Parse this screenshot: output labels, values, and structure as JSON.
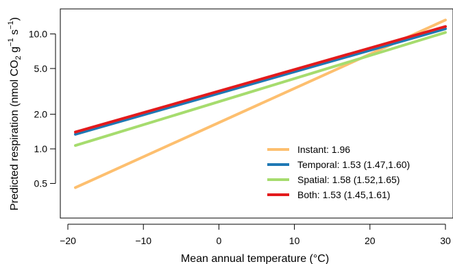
{
  "chart_data": {
    "type": "line",
    "xlabel": "Mean annual temperature (°C)",
    "ylabel_parts": {
      "a": "Predicted respiration (nmol CO",
      "b": "2",
      "c": " g",
      "d": "−1",
      "e": " s",
      "f": "−1",
      "g": ")"
    },
    "xlim": [
      -21,
      31
    ],
    "ylim": [
      0.25,
      16.5
    ],
    "y_scale": "log",
    "x_ticks": [
      -20,
      -10,
      0,
      10,
      20,
      30
    ],
    "x_tick_labels": [
      "−20",
      "−10",
      "0",
      "10",
      "20",
      "30"
    ],
    "y_ticks": [
      0.5,
      1.0,
      2.0,
      5.0,
      10.0
    ],
    "y_tick_labels": [
      "0.5",
      "1.0",
      "2.0",
      "5.0",
      "10.0"
    ],
    "legend_position": "bottom-right",
    "series": [
      {
        "name": "Instant: 1.96",
        "color": "#fdbf6f",
        "x": [
          -19,
          30
        ],
        "y": [
          0.46,
          13.2
        ]
      },
      {
        "name": "Temporal: 1.53 (1.47,1.60)",
        "color": "#1f78b4",
        "x": [
          -19,
          30
        ],
        "y": [
          1.34,
          11.1
        ]
      },
      {
        "name": "Spatial: 1.58 (1.52,1.65)",
        "color": "#a6dc6e",
        "x": [
          -19,
          30
        ],
        "y": [
          1.07,
          10.3
        ]
      },
      {
        "name": "Both: 1.53 (1.45,1.61)",
        "color": "#e31a1c",
        "x": [
          -19,
          30
        ],
        "y": [
          1.4,
          11.6
        ]
      }
    ]
  }
}
